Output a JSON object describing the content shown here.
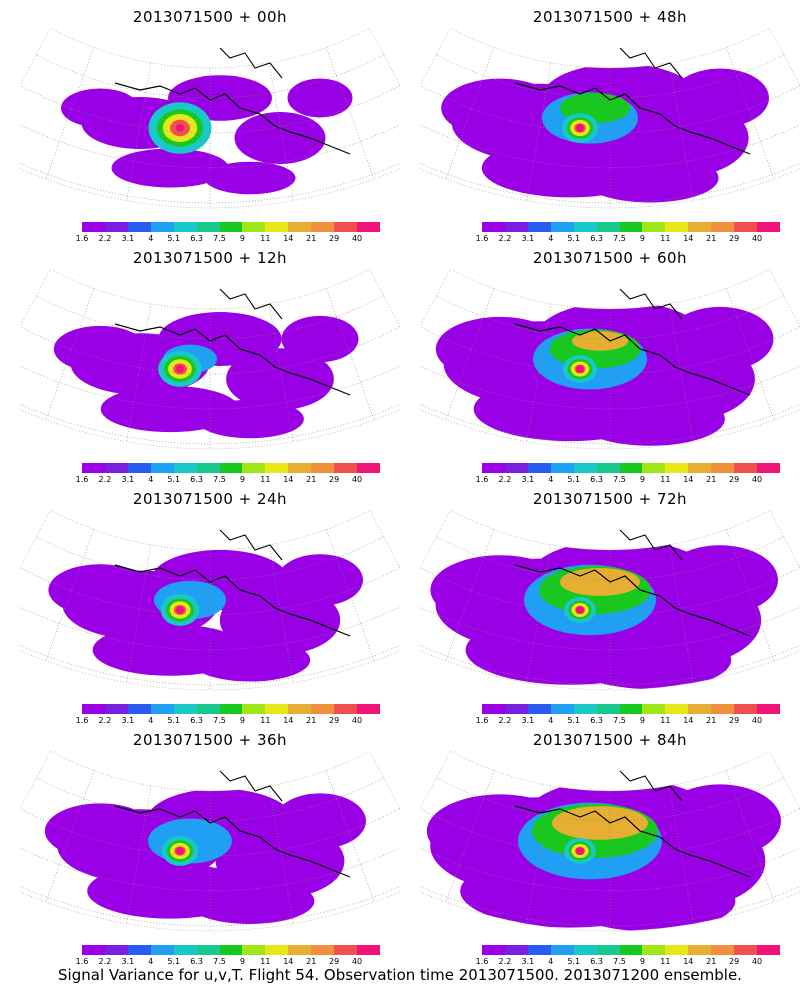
{
  "panels": [
    {
      "title": "2013071500 + 00h",
      "spread": 0.25,
      "hot": 2.6,
      "peak": 1.0
    },
    {
      "title": "2013071500 + 12h",
      "spread": 0.45,
      "hot": 1.8,
      "peak": 1.0
    },
    {
      "title": "2013071500 + 24h",
      "spread": 0.6,
      "hot": 1.6,
      "peak": 1.0
    },
    {
      "title": "2013071500 + 36h",
      "spread": 0.7,
      "hot": 1.5,
      "peak": 1.0
    },
    {
      "title": "2013071500 + 48h",
      "spread": 0.8,
      "hot": 1.5,
      "peak": 1.0
    },
    {
      "title": "2013071500 + 60h",
      "spread": 0.95,
      "hot": 1.4,
      "peak": 1.0
    },
    {
      "title": "2013071500 + 72h",
      "spread": 1.1,
      "hot": 1.3,
      "peak": 1.0
    },
    {
      "title": "2013071500 + 84h",
      "spread": 1.2,
      "hot": 1.3,
      "peak": 1.0
    }
  ],
  "colorbar": {
    "colors": [
      "#9a00e6",
      "#7a1fe0",
      "#2a5cf0",
      "#1fa0f5",
      "#19c8c8",
      "#19c88c",
      "#19c81e",
      "#a0e619",
      "#e6e619",
      "#e6af32",
      "#f0903c",
      "#f05050",
      "#f01478"
    ],
    "ticks": [
      "1.6",
      "2.2",
      "3.1",
      "4",
      "5.1",
      "6.3",
      "7.5",
      "9",
      "11",
      "14",
      "21",
      "29",
      "40"
    ]
  },
  "caption": "Signal Variance for u,v,T. Flight 54. Observation time 2013071500. 2013071200 ensemble."
}
